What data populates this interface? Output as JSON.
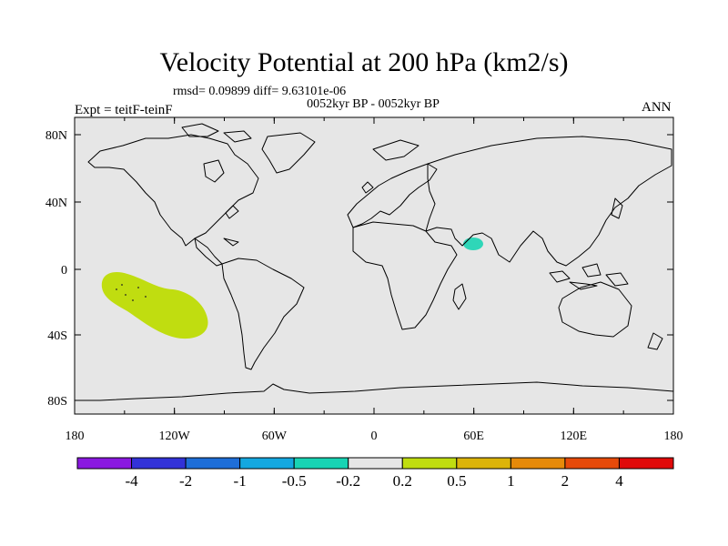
{
  "title": "Velocity Potential at 200 hPa (km2/s)",
  "stats": "rmsd= 0.09899 diff= 9.63101e-06",
  "subtitle": "0052kyr BP - 0052kyr BP",
  "experiment": "Expt = teitF-teinF",
  "season": "ANN",
  "axes": {
    "lon_ticks": [
      "180",
      "120W",
      "60W",
      "0",
      "60E",
      "120E",
      "180"
    ],
    "lat_ticks": [
      "80N",
      "40N",
      "0",
      "40S",
      "80S"
    ]
  },
  "colors": {
    "land_bg": "#e6e6e6",
    "coast": "#000000",
    "anomaly_pos": "#c0dd10",
    "anomaly_neg": "#2fd6b8"
  },
  "colorbar": {
    "colors": [
      "#8a19e0",
      "#3232d8",
      "#1e6ed8",
      "#14a8e0",
      "#18d4b4",
      "#e6e6e6",
      "#c0dd10",
      "#dcb40a",
      "#e68a0a",
      "#e64a0a",
      "#e00a0a"
    ],
    "labels": [
      "-4",
      "-2",
      "-1",
      "-0.5",
      "-0.2",
      "0.2",
      "0.5",
      "1",
      "2",
      "4"
    ]
  }
}
